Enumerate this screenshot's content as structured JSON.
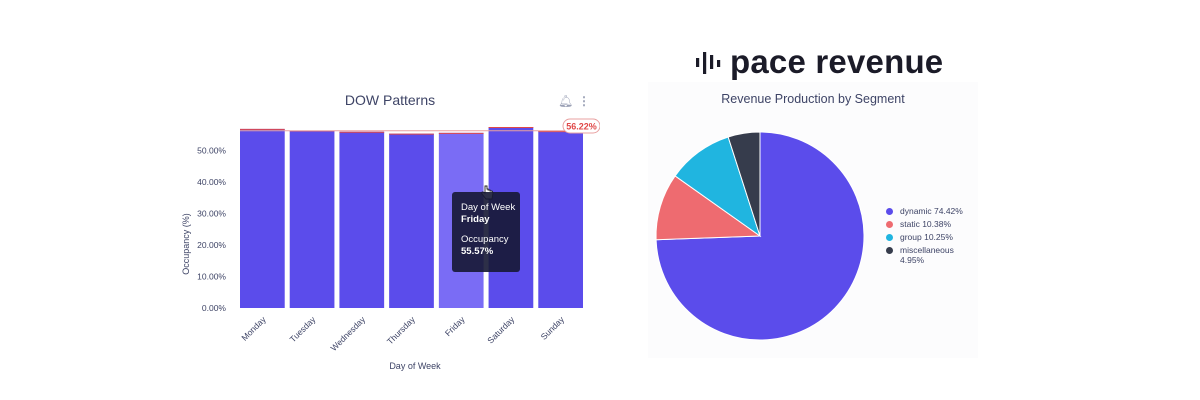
{
  "logo": {
    "text": "pace revenue"
  },
  "dow_panel": {
    "title": "DOW Patterns",
    "bell_icon": "bell-icon",
    "menu_icon": "vertical-dots-icon",
    "ref_label": "56.22%",
    "tooltip": {
      "cat_title": "Day of Week",
      "cat_value": "Friday",
      "val_title": "Occupancy",
      "val_value": "55.57%"
    }
  },
  "segment_panel": {
    "title": "Revenue Production by Segment"
  },
  "chart_data": [
    {
      "type": "bar",
      "title": "DOW Patterns",
      "xlabel": "Day of Week",
      "ylabel": "Occupancy (%)",
      "categories": [
        "Monday",
        "Tuesday",
        "Wednesday",
        "Thursday",
        "Friday",
        "Saturday",
        "Sunday"
      ],
      "values": [
        56.8,
        56.3,
        55.9,
        55.3,
        55.57,
        57.4,
        56.1
      ],
      "y_ticks": [
        "0.00%",
        "10.00%",
        "20.00%",
        "30.00%",
        "40.00%",
        "50.00%"
      ],
      "ylim": [
        0,
        59
      ],
      "reference_line": 56.22,
      "highlighted_category": "Friday",
      "grid": false,
      "colors": {
        "bar": "#5b4ceb",
        "highlight": "#7a6cf5",
        "bar_top": "#e04848",
        "reference": "#e8a0a0"
      }
    },
    {
      "type": "pie",
      "title": "Revenue Production by Segment",
      "labels": [
        "dynamic",
        "static",
        "group",
        "miscellaneous"
      ],
      "legend_labels": [
        "dynamic 74.42%",
        "static 10.38%",
        "group 10.25%",
        "miscellaneous 4.95%"
      ],
      "values": [
        74.42,
        10.38,
        10.25,
        4.95
      ],
      "colors": [
        "#5b4ceb",
        "#ee6b70",
        "#20b5e0",
        "#363c4c"
      ],
      "legend_position": "right"
    }
  ]
}
